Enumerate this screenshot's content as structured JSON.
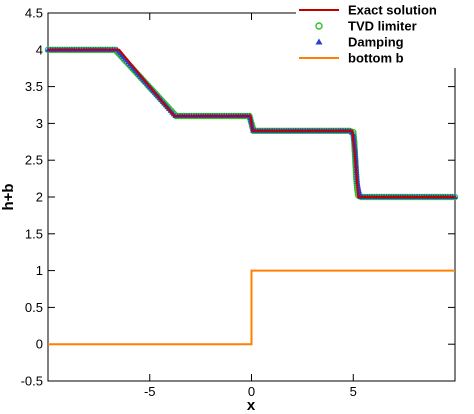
{
  "chart_data": {
    "type": "line",
    "xlabel": "x",
    "ylabel": "h+b",
    "xlim": [
      -10,
      10
    ],
    "ylim": [
      -0.5,
      4.5
    ],
    "xticks": [
      -5,
      0,
      5
    ],
    "xtick_labels": [
      "-5",
      "0",
      "5"
    ],
    "yticks": [
      -0.5,
      0,
      0.5,
      1,
      1.5,
      2,
      2.5,
      3,
      3.5,
      4,
      4.5
    ],
    "ytick_labels": [
      "-0.5",
      "0",
      "0.5",
      "1",
      "1.5",
      "2",
      "2.5",
      "3",
      "3.5",
      "4",
      "4.5"
    ],
    "grid": false,
    "legend_position": "top-right",
    "series": [
      {
        "name": "Exact solution",
        "kind": "line",
        "color": "#c00000",
        "x": [
          -10,
          -6.5,
          -3.8,
          -0.05,
          0.05,
          4.95,
          5.05,
          5.25,
          10
        ],
        "y": [
          4.0,
          4.0,
          3.1,
          3.1,
          2.9,
          2.9,
          2.65,
          2.0,
          2.0
        ]
      },
      {
        "name": "TVD limiter",
        "kind": "markers",
        "marker": "circle-open",
        "color": "#2ec02e",
        "x": [
          -10,
          -6.7,
          -3.7,
          -0.1,
          0.1,
          4.8,
          5.0,
          5.05,
          5.1,
          5.15,
          5.2,
          5.25,
          5.4,
          10
        ],
        "y": [
          4.0,
          4.0,
          3.1,
          3.1,
          2.9,
          2.9,
          2.88,
          2.75,
          2.5,
          2.25,
          2.1,
          2.02,
          2.0,
          2.0
        ]
      },
      {
        "name": "Damping",
        "kind": "markers",
        "marker": "triangle",
        "color": "#2a3fd0",
        "x": [
          -10,
          -6.6,
          -3.75,
          -0.08,
          0.08,
          4.85,
          5.0,
          5.1,
          5.2,
          5.35,
          10
        ],
        "y": [
          4.0,
          4.0,
          3.1,
          3.1,
          2.9,
          2.9,
          2.85,
          2.6,
          2.2,
          2.0,
          2.0
        ]
      },
      {
        "name": "bottom b",
        "kind": "line",
        "color": "#ff8000",
        "x": [
          -10,
          0,
          0,
          10
        ],
        "y": [
          0,
          0,
          1,
          1
        ]
      }
    ]
  }
}
